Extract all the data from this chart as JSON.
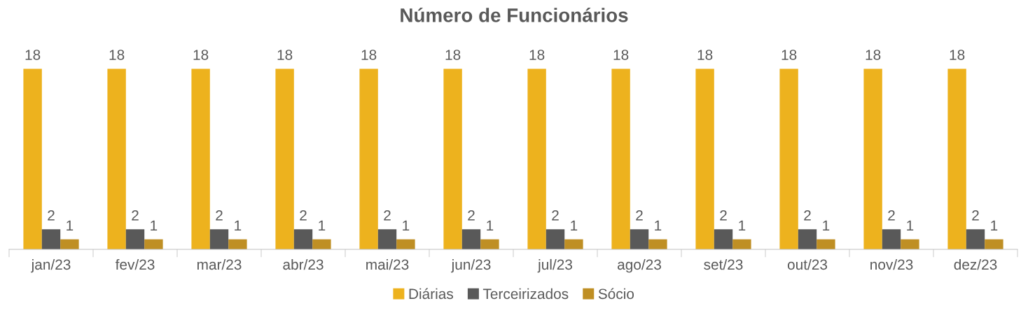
{
  "chart_data": {
    "type": "bar",
    "title": "Número de Funcionários",
    "categories": [
      "jan/23",
      "fev/23",
      "mar/23",
      "abr/23",
      "mai/23",
      "jun/23",
      "jul/23",
      "ago/23",
      "set/23",
      "out/23",
      "nov/23",
      "dez/23"
    ],
    "series": [
      {
        "name": "Diárias",
        "color": "#edb21e",
        "values": [
          18,
          18,
          18,
          18,
          18,
          18,
          18,
          18,
          18,
          18,
          18,
          18
        ]
      },
      {
        "name": "Terceirizados",
        "color": "#595959",
        "values": [
          2,
          2,
          2,
          2,
          2,
          2,
          2,
          2,
          2,
          2,
          2,
          2
        ]
      },
      {
        "name": "Sócio",
        "color": "#bf8f24",
        "values": [
          1,
          1,
          1,
          1,
          1,
          1,
          1,
          1,
          1,
          1,
          1,
          1
        ]
      }
    ],
    "data_labels": true,
    "legend": "bottom"
  }
}
